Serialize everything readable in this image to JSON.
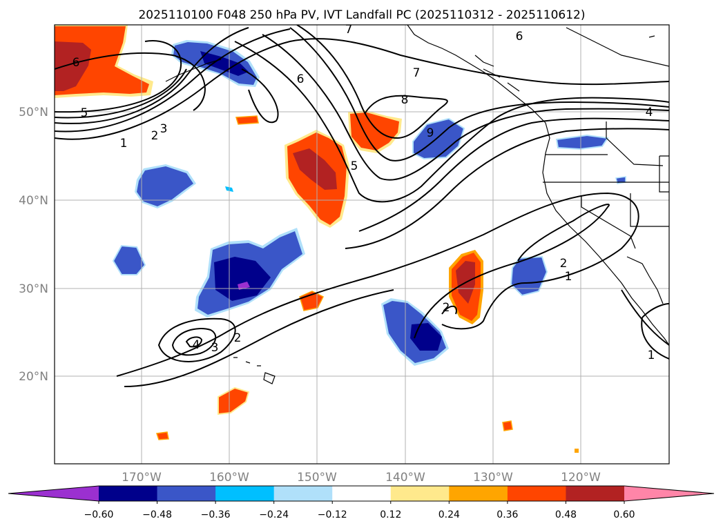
{
  "title": "2025110100 F048 250 hPa PV, IVT Landfall PC (2025110312 - 2025110612)",
  "lon_labels": [
    "170°W",
    "160°W",
    "150°W",
    "140°W",
    "130°W",
    "120°W"
  ],
  "lat_labels": [
    "20°N",
    "30°N",
    "40°N",
    "50°N"
  ],
  "colorbar": {
    "tick_labels": [
      "−0.60",
      "−0.48",
      "−0.36",
      "−0.24",
      "−0.12",
      "0.12",
      "0.24",
      "0.36",
      "0.48",
      "0.60"
    ],
    "colors": [
      "#9b30d0",
      "#00008b",
      "#3a56c8",
      "#00bfff",
      "#b0e0fa",
      "#ffffff",
      "#ffe98c",
      "#ffa500",
      "#ff4500",
      "#b22222",
      "#ff85a8"
    ]
  },
  "contour_labels": [
    "6",
    "5",
    "3",
    "2",
    "1",
    "7",
    "6",
    "6",
    "7",
    "8",
    "9",
    "5",
    "4",
    "2",
    "1",
    "2",
    "4",
    "3",
    "2",
    "1"
  ],
  "colors": {
    "frame": "#000000",
    "grid": "#b0b0b0",
    "axis_text": "#808080",
    "contour": "#000000"
  }
}
